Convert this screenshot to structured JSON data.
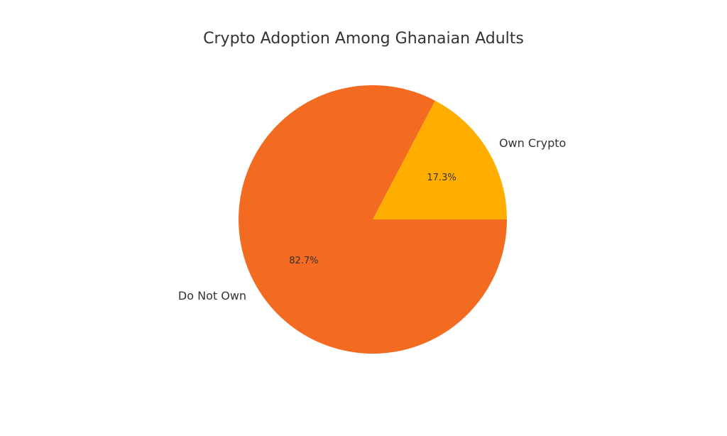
{
  "chart_data": {
    "type": "pie",
    "title": "Crypto Adoption Among Ghanaian Adults",
    "slices": [
      {
        "label": "Own Crypto",
        "value": 17.3,
        "pct_label": "17.3%",
        "color": "#FFAE00"
      },
      {
        "label": "Do Not Own",
        "value": 82.7,
        "pct_label": "82.7%",
        "color": "#F26B21"
      }
    ],
    "start_angle_deg": 0,
    "direction": "counterclockwise"
  }
}
